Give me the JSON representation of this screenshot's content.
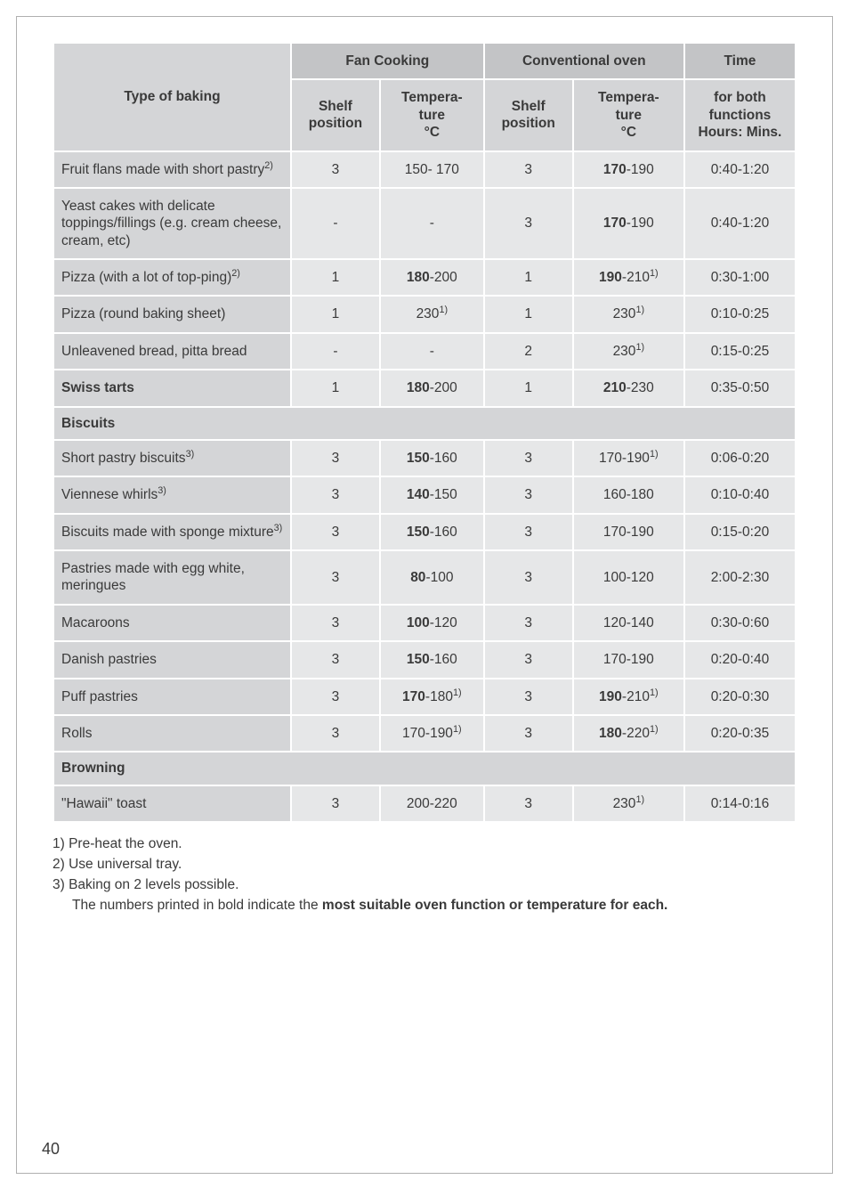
{
  "headers": {
    "fan": "Fan Cooking",
    "conv": "Conventional oven",
    "time": "Time",
    "type": "Type of baking",
    "shelf": "Shelf position",
    "temp": "Tempera-\nture\n°C",
    "time_sub": "for both functions Hours: Mins."
  },
  "rows": [
    {
      "label": "Fruit flans made with short pastry",
      "label_sup": "2)",
      "sp1": "3",
      "t1": "150- 170",
      "sp2": "3",
      "t2_b": "170",
      "t2_r": "-190",
      "time": "0:40-1:20"
    },
    {
      "label": "Yeast cakes with delicate toppings/fillings (e.g. cream cheese, cream, etc)",
      "sp1": "-",
      "t1": "-",
      "sp2": "3",
      "t2_b": "170",
      "t2_r": "-190",
      "time": "0:40-1:20"
    },
    {
      "label": "Pizza (with a lot of top-ping)",
      "label_sup": "2)",
      "sp1": "1",
      "t1_b": "180",
      "t1_r": "-200",
      "sp2": "1",
      "t2_b": "190",
      "t2_r": "-210",
      "t2_sup": "1)",
      "time": "0:30-1:00"
    },
    {
      "label": "Pizza (round baking sheet)",
      "sp1": "1",
      "t1": "230",
      "t1_sup": "1)",
      "sp2": "1",
      "t2": "230",
      "t2_sup": "1)",
      "time": "0:10-0:25"
    },
    {
      "label": "Unleavened bread, pitta bread",
      "sp1": "-",
      "t1": "-",
      "sp2": "2",
      "t2": "230",
      "t2_sup": "1)",
      "time": "0:15-0:25"
    },
    {
      "label_b": "Swiss tarts",
      "sp1": "1",
      "t1_b": "180",
      "t1_r": "-200",
      "sp2": "1",
      "t2_b": "210",
      "t2_r": "-230",
      "time": "0:35-0:50"
    }
  ],
  "section_biscuits": "Biscuits",
  "rows2": [
    {
      "label": "Short pastry biscuits",
      "label_sup": "3)",
      "sp1": "3",
      "t1_b": "150",
      "t1_r": "-160",
      "sp2": "3",
      "t2": "170-190",
      "t2_sup": "1)",
      "time": "0:06-0:20"
    },
    {
      "label": "Viennese whirls",
      "label_sup": "3)",
      "sp1": "3",
      "t1_b": "140",
      "t1_r": "-150",
      "sp2": "3",
      "t2": "160-180",
      "time": "0:10-0:40"
    },
    {
      "label": "Biscuits made with sponge mixture",
      "label_sup": "3)",
      "sp1": "3",
      "t1_b": "150",
      "t1_r": "-160",
      "sp2": "3",
      "t2": "170-190",
      "time": "0:15-0:20"
    },
    {
      "label": "Pastries made with egg white, meringues",
      "sp1": "3",
      "t1_b": "80",
      "t1_r": "-100",
      "sp2": "3",
      "t2": "100-120",
      "time": "2:00-2:30"
    },
    {
      "label": "Macaroons",
      "sp1": "3",
      "t1_b": "100",
      "t1_r": "-120",
      "sp2": "3",
      "t2": "120-140",
      "time": "0:30-0:60"
    },
    {
      "label": "Danish pastries",
      "sp1": "3",
      "t1_b": "150",
      "t1_r": "-160",
      "sp2": "3",
      "t2": "170-190",
      "time": "0:20-0:40"
    },
    {
      "label": "Puff pastries",
      "sp1": "3",
      "t1_b": "170",
      "t1_r": "-180",
      "t1_sup": "1)",
      "sp2": "3",
      "t2_b": "190",
      "t2_r": "-210",
      "t2_sup": "1)",
      "time": "0:20-0:30"
    },
    {
      "label": "Rolls",
      "sp1": "3",
      "t1": "170-190",
      "t1_sup": "1)",
      "sp2": "3",
      "t2_b": "180",
      "t2_r": "-220",
      "t2_sup": "1)",
      "time": "0:20-0:35"
    }
  ],
  "section_browning": "Browning",
  "rows3": [
    {
      "label": "\"Hawaii\" toast",
      "sp1": "3",
      "t1": "200-220",
      "sp2": "3",
      "t2": "230",
      "t2_sup": "1)",
      "time": "0:14-0:16"
    }
  ],
  "footnotes": {
    "f1": "1) Pre-heat the oven.",
    "f2": "2) Use universal tray.",
    "f3": "3) Baking on 2 levels possible.",
    "f4a": "The numbers printed in bold indicate the ",
    "f4b": "most suitable oven function or temperature for each."
  },
  "pagenum": "40"
}
